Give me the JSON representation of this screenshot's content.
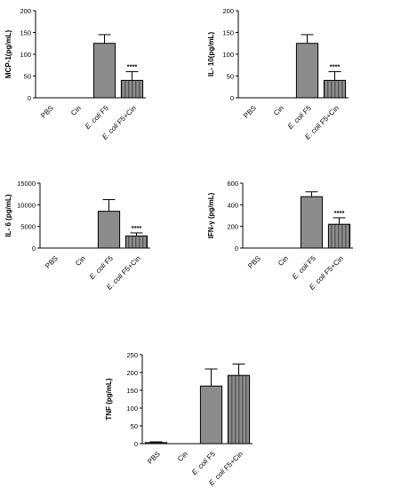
{
  "chart_data": [
    {
      "type": "bar",
      "ylabel": "MCP-1(pg/mL)",
      "ylim": [
        0,
        200
      ],
      "yticks": [
        0,
        50,
        100,
        150,
        200
      ],
      "categories": [
        {
          "text": "PBS"
        },
        {
          "text": "Cin"
        },
        {
          "italic": "E. coli",
          "text": " F5"
        },
        {
          "italic": "E. coli",
          "text": " F5+Cin"
        }
      ],
      "values": [
        0,
        0,
        125,
        40
      ],
      "errors": [
        0,
        0,
        20,
        20
      ],
      "fills": [
        "solid",
        "solid",
        "solid",
        "striped"
      ],
      "significance": [
        "",
        "",
        "",
        "****"
      ]
    },
    {
      "type": "bar",
      "ylabel": "IL- 10(pg/mL)",
      "ylim": [
        0,
        200
      ],
      "yticks": [
        0,
        50,
        100,
        150,
        200
      ],
      "categories": [
        {
          "text": "PBS"
        },
        {
          "text": "Cin"
        },
        {
          "italic": "E. coli",
          "text": " F5"
        },
        {
          "italic": "E. coli",
          "text": " F5+Cin"
        }
      ],
      "values": [
        0,
        0,
        125,
        40
      ],
      "errors": [
        0,
        0,
        20,
        20
      ],
      "fills": [
        "solid",
        "solid",
        "solid",
        "striped"
      ],
      "significance": [
        "",
        "",
        "",
        "****"
      ]
    },
    {
      "type": "bar",
      "ylabel": "IL- 6 (pg/mL)",
      "ylim": [
        0,
        15000
      ],
      "yticks": [
        0,
        5000,
        10000,
        15000
      ],
      "categories": [
        {
          "text": "PBS"
        },
        {
          "text": "Cin"
        },
        {
          "italic": "E. coli",
          "text": " F5"
        },
        {
          "italic": "E. coli",
          "text": " F5+Cin"
        }
      ],
      "values": [
        0,
        0,
        8500,
        2800
      ],
      "errors": [
        0,
        0,
        2700,
        700
      ],
      "fills": [
        "solid",
        "solid",
        "solid",
        "striped"
      ],
      "significance": [
        "",
        "",
        "",
        "****"
      ]
    },
    {
      "type": "bar",
      "ylabel": "IFN-γ (pg/mL)",
      "ylim": [
        0,
        600
      ],
      "yticks": [
        0,
        200,
        400,
        600
      ],
      "categories": [
        {
          "text": "PBS"
        },
        {
          "text": "Cin"
        },
        {
          "italic": "E. coli",
          "text": " F5"
        },
        {
          "italic": "E. coli",
          "text": " F5+Cin"
        }
      ],
      "values": [
        0,
        0,
        475,
        220
      ],
      "errors": [
        0,
        0,
        45,
        60
      ],
      "fills": [
        "solid",
        "solid",
        "solid",
        "striped"
      ],
      "significance": [
        "",
        "",
        "",
        "****"
      ]
    },
    {
      "type": "bar",
      "ylabel": "TNF (pg/mL)",
      "ylim": [
        0,
        250
      ],
      "yticks": [
        0,
        50,
        100,
        150,
        200,
        250
      ],
      "categories": [
        {
          "text": "PBS"
        },
        {
          "text": "Cin"
        },
        {
          "italic": "E. coli",
          "text": " F5"
        },
        {
          "italic": "E. coli",
          "text": " F5+Cin"
        }
      ],
      "values": [
        3,
        0,
        162,
        192
      ],
      "errors": [
        2,
        0,
        48,
        32
      ],
      "fills": [
        "solid",
        "solid",
        "solid",
        "striped"
      ],
      "significance": [
        "",
        "",
        "",
        ""
      ]
    }
  ],
  "colors": {
    "bar_fill": "#8c8c8c",
    "stripe": "#555555",
    "axis": "#000000"
  }
}
